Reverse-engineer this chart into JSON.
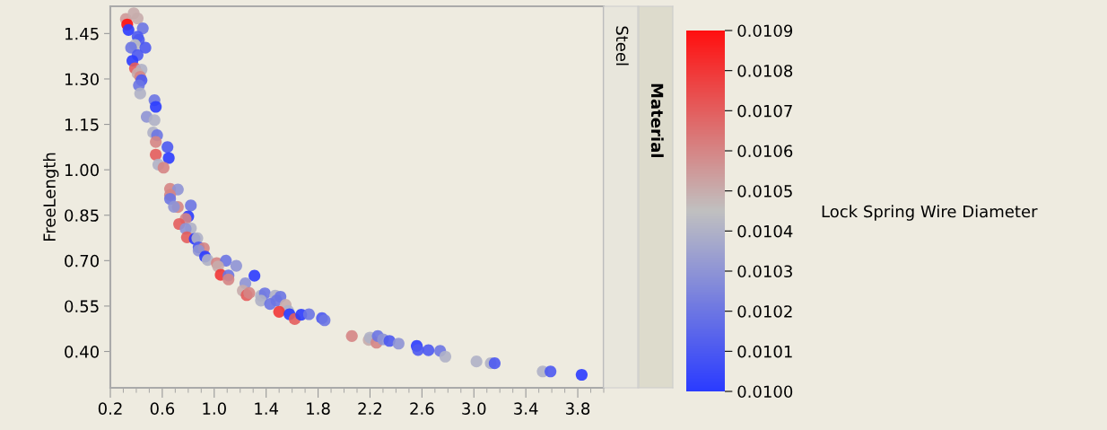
{
  "chart_data": {
    "type": "scatter",
    "ylabel": "FreeLength",
    "clabel": "Lock Spring Wire Diameter",
    "annotations": [
      "Steel",
      "Material"
    ],
    "x": [
      0.32,
      0.38,
      0.41,
      0.33,
      0.34,
      0.45,
      0.41,
      0.42,
      0.39,
      0.36,
      0.47,
      0.41,
      0.37,
      0.39,
      0.44,
      0.41,
      0.43,
      0.44,
      0.42,
      0.43,
      0.54,
      0.55,
      0.48,
      0.54,
      0.53,
      0.56,
      0.55,
      0.55,
      0.64,
      0.65,
      0.57,
      0.61,
      0.66,
      0.72,
      0.66,
      0.66,
      0.72,
      0.69,
      0.82,
      0.8,
      0.78,
      0.73,
      0.82,
      0.78,
      0.79,
      0.85,
      0.87,
      0.88,
      0.92,
      0.88,
      0.93,
      0.95,
      1.02,
      1.09,
      1.17,
      1.03,
      1.05,
      1.11,
      1.11,
      1.31,
      1.24,
      1.22,
      1.25,
      1.27,
      1.36,
      1.39,
      1.36,
      1.47,
      1.51,
      1.43,
      1.48,
      1.55,
      1.57,
      1.5,
      1.58,
      1.62,
      1.67,
      1.73,
      1.83,
      1.85,
      2.06,
      2.19,
      2.2,
      2.25,
      2.26,
      2.3,
      2.35,
      2.42,
      2.56,
      2.57,
      2.65,
      2.74,
      2.78,
      3.02,
      3.13,
      3.16,
      3.53,
      3.59,
      3.83
    ],
    "values": [
      1.498,
      1.517,
      1.5,
      1.48,
      1.462,
      1.467,
      1.44,
      1.429,
      1.412,
      1.403,
      1.403,
      1.379,
      1.36,
      1.335,
      1.331,
      1.318,
      1.307,
      1.296,
      1.279,
      1.252,
      1.23,
      1.208,
      1.175,
      1.164,
      1.123,
      1.114,
      1.092,
      1.05,
      1.075,
      1.039,
      1.017,
      1.007,
      0.937,
      0.935,
      0.917,
      0.904,
      0.877,
      0.878,
      0.882,
      0.846,
      0.838,
      0.821,
      0.807,
      0.805,
      0.777,
      0.772,
      0.774,
      0.744,
      0.741,
      0.733,
      0.713,
      0.702,
      0.692,
      0.7,
      0.683,
      0.681,
      0.653,
      0.651,
      0.638,
      0.65,
      0.625,
      0.601,
      0.586,
      0.593,
      0.584,
      0.592,
      0.568,
      0.584,
      0.581,
      0.557,
      0.568,
      0.554,
      0.534,
      0.531,
      0.523,
      0.507,
      0.521,
      0.523,
      0.51,
      0.503,
      0.451,
      0.438,
      0.446,
      0.429,
      0.451,
      0.44,
      0.435,
      0.426,
      0.418,
      0.405,
      0.404,
      0.402,
      0.383,
      0.367,
      0.361,
      0.361,
      0.334,
      0.334,
      0.323
    ],
    "cvalues": [
      0.01055,
      0.0105,
      0.0105,
      0.0109,
      0.01,
      0.0102,
      0.0101,
      0.0101,
      0.01045,
      0.0102,
      0.0101,
      0.0101,
      0.01,
      0.0107,
      0.0104,
      0.0105,
      0.0106,
      0.0101,
      0.0102,
      0.0104,
      0.0102,
      0.01,
      0.0103,
      0.0104,
      0.0104,
      0.0102,
      0.0106,
      0.0107,
      0.0101,
      0.01,
      0.0104,
      0.0106,
      0.0106,
      0.0103,
      0.0106,
      0.0102,
      0.0106,
      0.0103,
      0.0102,
      0.01,
      0.0106,
      0.0107,
      0.0104,
      0.0103,
      0.0107,
      0.01,
      0.0104,
      0.0101,
      0.0106,
      0.0103,
      0.01,
      0.0104,
      0.0106,
      0.0102,
      0.0103,
      0.0105,
      0.0108,
      0.0102,
      0.0106,
      0.01,
      0.0103,
      0.0105,
      0.0107,
      0.0106,
      0.0104,
      0.0102,
      0.0104,
      0.0104,
      0.0102,
      0.0102,
      0.0102,
      0.0105,
      0.0104,
      0.0108,
      0.01,
      0.0107,
      0.01,
      0.0102,
      0.0101,
      0.0102,
      0.0106,
      0.0105,
      0.0104,
      0.0106,
      0.0102,
      0.0103,
      0.0101,
      0.0103,
      0.01,
      0.0101,
      0.0101,
      0.0102,
      0.0104,
      0.0104,
      0.0104,
      0.0101,
      0.0104,
      0.0101,
      0.01
    ],
    "xlim": [
      0.2,
      4.0
    ],
    "ylim": [
      0.28,
      1.54
    ],
    "xticks": [
      {
        "value": 0.2,
        "label": "0.2"
      },
      {
        "value": 0.6,
        "label": "0.6"
      },
      {
        "value": 1.0,
        "label": "1.0"
      },
      {
        "value": 1.4,
        "label": "1.4"
      },
      {
        "value": 1.8,
        "label": "1.8"
      },
      {
        "value": 2.2,
        "label": "2.2"
      },
      {
        "value": 2.6,
        "label": "2.6"
      },
      {
        "value": 3.0,
        "label": "3.0"
      },
      {
        "value": 3.4,
        "label": "3.4"
      },
      {
        "value": 3.8,
        "label": "3.8"
      }
    ],
    "yticks": [
      {
        "value": 0.4,
        "label": "0.40"
      },
      {
        "value": 0.55,
        "label": "0.55"
      },
      {
        "value": 0.7,
        "label": "0.70"
      },
      {
        "value": 0.85,
        "label": "0.85"
      },
      {
        "value": 1.0,
        "label": "1.00"
      },
      {
        "value": 1.15,
        "label": "1.15"
      },
      {
        "value": 1.3,
        "label": "1.30"
      },
      {
        "value": 1.45,
        "label": "1.45"
      }
    ],
    "clim": [
      0.01,
      0.0109
    ],
    "cticks": [
      {
        "value": 0.01,
        "label": "0.0100"
      },
      {
        "value": 0.0101,
        "label": "0.0101"
      },
      {
        "value": 0.0102,
        "label": "0.0102"
      },
      {
        "value": 0.0103,
        "label": "0.0103"
      },
      {
        "value": 0.0104,
        "label": "0.0104"
      },
      {
        "value": 0.0105,
        "label": "0.0105"
      },
      {
        "value": 0.0106,
        "label": "0.0106"
      },
      {
        "value": 0.0107,
        "label": "0.0107"
      },
      {
        "value": 0.0108,
        "label": "0.0108"
      },
      {
        "value": 0.0109,
        "label": "0.0109"
      }
    ],
    "marker": "circle",
    "grid": false
  }
}
